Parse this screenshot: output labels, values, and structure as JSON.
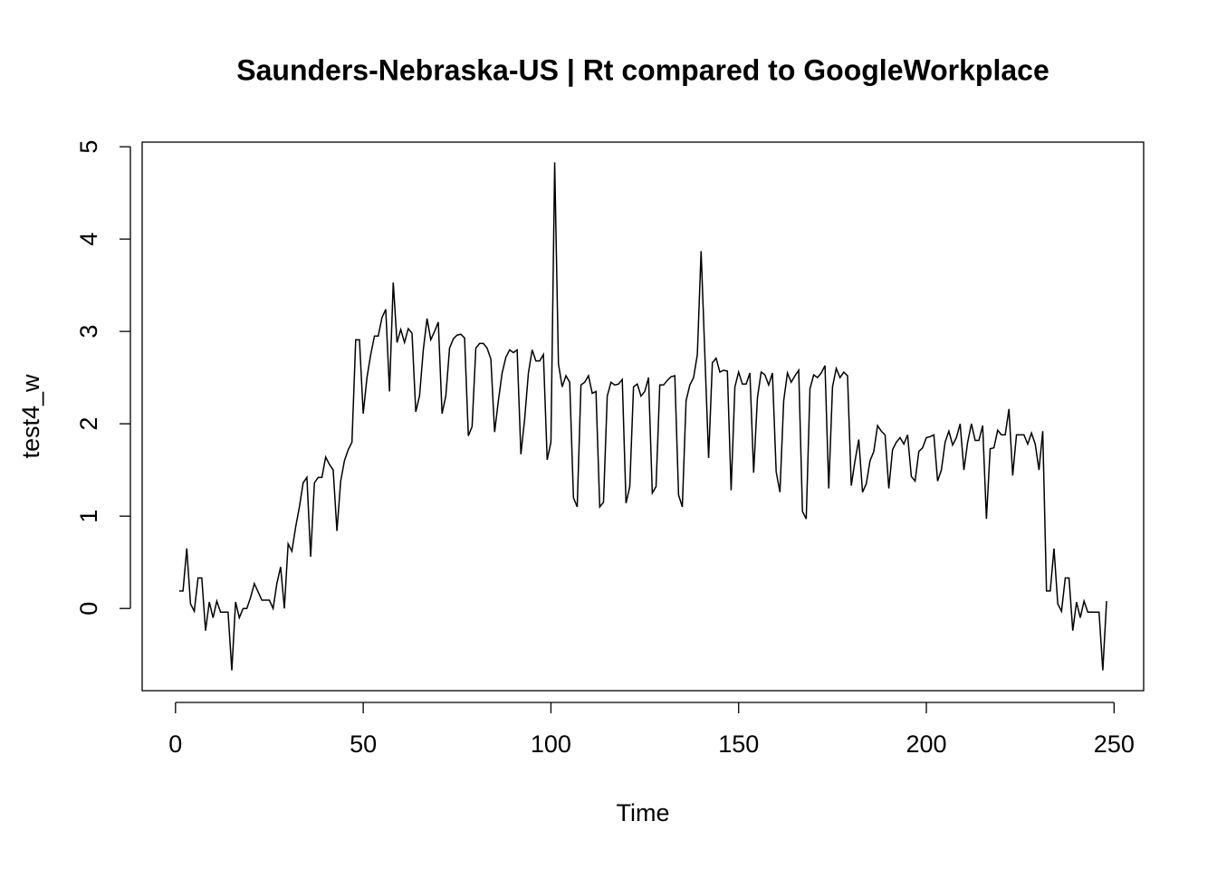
{
  "chart_data": {
    "type": "line",
    "title": "Saunders-Nebraska-US | Rt compared to GoogleWorkplace",
    "x_label": "Time",
    "y_label": "test4_w",
    "color": "#000000",
    "xlim": [
      -8.88,
      257.88
    ],
    "ylim": [
      -0.89,
      5.05
    ],
    "xticks": [
      0,
      50,
      100,
      150,
      200,
      250
    ],
    "yticks": [
      0,
      1,
      2,
      3,
      4,
      5
    ],
    "x": [
      1,
      2,
      3,
      4,
      5,
      6,
      7,
      8,
      9,
      10,
      11,
      12,
      13,
      14,
      15,
      16,
      17,
      18,
      19,
      20,
      21,
      22,
      23,
      24,
      25,
      26,
      27,
      28,
      29,
      30,
      31,
      32,
      33,
      34,
      35,
      36,
      37,
      38,
      39,
      40,
      41,
      42,
      43,
      44,
      45,
      46,
      47,
      48,
      49,
      50,
      51,
      52,
      53,
      54,
      55,
      56,
      57,
      58,
      59,
      60,
      61,
      62,
      63,
      64,
      65,
      66,
      67,
      68,
      69,
      70,
      71,
      72,
      73,
      74,
      75,
      76,
      77,
      78,
      79,
      80,
      81,
      82,
      83,
      84,
      85,
      86,
      87,
      88,
      89,
      90,
      91,
      92,
      93,
      94,
      95,
      96,
      97,
      98,
      99,
      100,
      101,
      102,
      103,
      104,
      105,
      106,
      107,
      108,
      109,
      110,
      111,
      112,
      113,
      114,
      115,
      116,
      117,
      118,
      119,
      120,
      121,
      122,
      123,
      124,
      125,
      126,
      127,
      128,
      129,
      130,
      131,
      132,
      133,
      134,
      135,
      136,
      137,
      138,
      139,
      140,
      141,
      142,
      143,
      144,
      145,
      146,
      147,
      148,
      149,
      150,
      151,
      152,
      153,
      154,
      155,
      156,
      157,
      158,
      159,
      160,
      161,
      162,
      163,
      164,
      165,
      166,
      167,
      168,
      169,
      170,
      171,
      172,
      173,
      174,
      175,
      176,
      177,
      178,
      179,
      180,
      181,
      182,
      183,
      184,
      185,
      186,
      187,
      188,
      189,
      190,
      191,
      192,
      193,
      194,
      195,
      196,
      197,
      198,
      199,
      200,
      201,
      202,
      203,
      204,
      205,
      206,
      207,
      208,
      209,
      210,
      211,
      212,
      213,
      214,
      215,
      216,
      217,
      218,
      219,
      220,
      221,
      222,
      223,
      224,
      225,
      226,
      227,
      228,
      229,
      230,
      231,
      232,
      233,
      234,
      235,
      236,
      237,
      238,
      239,
      240,
      241,
      242,
      243,
      244,
      245,
      246,
      247,
      248
    ],
    "values": [
      0.19,
      0.19,
      0.65,
      0.05,
      -0.03,
      0.33,
      0.33,
      -0.24,
      0.07,
      -0.1,
      0.08,
      -0.04,
      -0.04,
      -0.04,
      -0.67,
      0.07,
      -0.1,
      0.0,
      0.0,
      0.12,
      0.27,
      0.18,
      0.09,
      0.09,
      0.09,
      0.0,
      0.27,
      0.45,
      0.0,
      0.7,
      0.62,
      0.88,
      1.1,
      1.36,
      1.42,
      0.56,
      1.36,
      1.42,
      1.42,
      1.64,
      1.56,
      1.5,
      0.84,
      1.38,
      1.6,
      1.72,
      1.8,
      2.91,
      2.91,
      2.11,
      2.5,
      2.75,
      2.95,
      2.95,
      3.15,
      3.24,
      2.35,
      3.53,
      2.88,
      3.02,
      2.88,
      3.03,
      2.98,
      2.13,
      2.3,
      2.8,
      3.14,
      2.91,
      3.0,
      3.1,
      2.11,
      2.3,
      2.82,
      2.92,
      2.96,
      2.97,
      2.93,
      1.87,
      1.97,
      2.82,
      2.87,
      2.87,
      2.82,
      2.7,
      1.91,
      2.25,
      2.55,
      2.72,
      2.8,
      2.77,
      2.8,
      1.67,
      2.05,
      2.55,
      2.8,
      2.68,
      2.68,
      2.75,
      1.61,
      1.8,
      4.83,
      2.65,
      2.4,
      2.52,
      2.45,
      1.2,
      1.1,
      2.42,
      2.45,
      2.52,
      2.33,
      2.35,
      1.1,
      1.15,
      2.3,
      2.45,
      2.42,
      2.43,
      2.48,
      1.14,
      1.32,
      2.4,
      2.43,
      2.3,
      2.35,
      2.5,
      1.25,
      1.32,
      2.42,
      2.42,
      2.47,
      2.51,
      2.52,
      1.23,
      1.1,
      2.25,
      2.42,
      2.5,
      2.75,
      3.87,
      2.75,
      1.63,
      2.66,
      2.71,
      2.56,
      2.58,
      2.57,
      1.28,
      2.4,
      2.56,
      2.43,
      2.43,
      2.55,
      1.47,
      2.28,
      2.56,
      2.53,
      2.42,
      2.55,
      1.48,
      1.26,
      2.25,
      2.55,
      2.45,
      2.52,
      2.58,
      1.05,
      0.97,
      2.38,
      2.53,
      2.5,
      2.55,
      2.63,
      1.3,
      2.4,
      2.6,
      2.5,
      2.56,
      2.52,
      1.33,
      1.6,
      1.83,
      1.26,
      1.35,
      1.6,
      1.7,
      1.98,
      1.92,
      1.88,
      1.3,
      1.72,
      1.8,
      1.85,
      1.78,
      1.88,
      1.43,
      1.38,
      1.7,
      1.74,
      1.85,
      1.86,
      1.88,
      1.38,
      1.5,
      1.8,
      1.92,
      1.77,
      1.85,
      2.0,
      1.5,
      1.8,
      2.0,
      1.82,
      1.82,
      1.98,
      0.97,
      1.73,
      1.74,
      1.93,
      1.88,
      1.88,
      2.16,
      1.44,
      1.88,
      1.88,
      1.88,
      1.78,
      1.9,
      1.78,
      1.5,
      1.92,
      0.19,
      0.19,
      0.65,
      0.05,
      -0.03,
      0.33,
      0.33,
      -0.24,
      0.07,
      -0.1,
      0.08,
      -0.04,
      -0.04,
      -0.04,
      -0.04,
      -0.67,
      0.08
    ]
  }
}
